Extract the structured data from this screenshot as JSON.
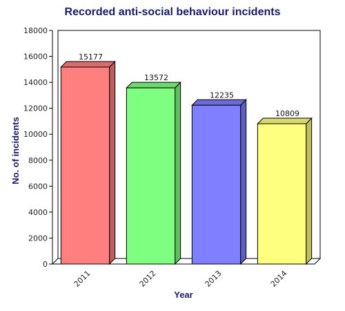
{
  "chart_data": {
    "type": "bar",
    "title": "Recorded anti-social behaviour incidents",
    "xlabel": "Year",
    "ylabel": "No. of incidents",
    "categories": [
      "2011",
      "2012",
      "2013",
      "2014"
    ],
    "values": [
      15177,
      13572,
      12235,
      10809
    ],
    "data_labels": [
      "15177",
      "13572",
      "12235",
      "10809"
    ],
    "ylim": [
      0,
      18000
    ],
    "yticks": [
      "0",
      "2000",
      "4000",
      "6000",
      "8000",
      "10000",
      "12000",
      "14000",
      "16000",
      "18000"
    ],
    "bar_colors": [
      "#ff7f7f",
      "#7fff7f",
      "#7f7fff",
      "#ffff7f"
    ],
    "grid": false,
    "legend": "none",
    "style": "3d"
  }
}
